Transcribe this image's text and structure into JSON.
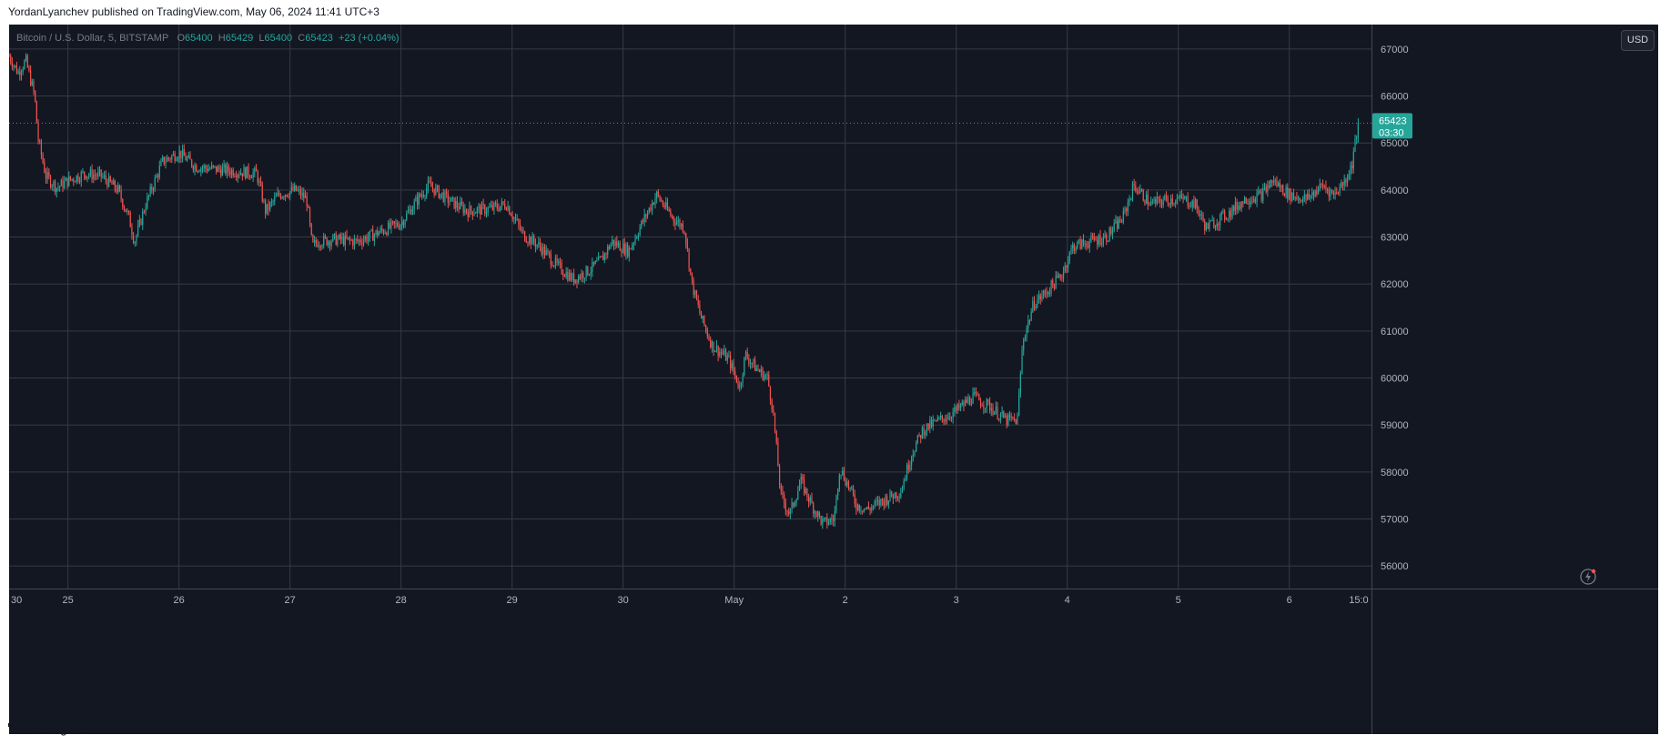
{
  "publish_info": "YordanLyanchev published on TradingView.com, May 06, 2024 11:41 UTC+3",
  "legend": {
    "symbol": "Bitcoin / U.S. Dollar, 5, BITSTAMP",
    "open_label": "O",
    "open": "65400",
    "high_label": "H",
    "high": "65429",
    "low_label": "L",
    "low": "65400",
    "close_label": "C",
    "close": "65423",
    "change": "+23 (+0.04%)"
  },
  "currency_button": "USD",
  "price_label": {
    "price": "65423",
    "countdown": "03:30"
  },
  "footer": {
    "brand": "TradingView",
    "logo_icon": "tradingview-logo-icon"
  },
  "colors": {
    "background": "#131722",
    "grid": "#363a45",
    "up": "#26a69a",
    "down": "#ef5350",
    "axis_text": "#b2b5be"
  },
  "chart_data": {
    "type": "candlestick",
    "title": "Bitcoin / U.S. Dollar, 5, BITSTAMP",
    "x_ticks": [
      "30",
      "25",
      "26",
      "27",
      "28",
      "29",
      "30",
      "May",
      "2",
      "3",
      "4",
      "5",
      "6",
      "15:0"
    ],
    "x_tick_days": [
      -1,
      0,
      1,
      2,
      3,
      4,
      5,
      6,
      7,
      8,
      9,
      10,
      11,
      11.625
    ],
    "x_range_days": [
      -0.53,
      11.74
    ],
    "y_ticks": [
      56000,
      57000,
      58000,
      59000,
      60000,
      61000,
      62000,
      63000,
      64000,
      65000,
      66000,
      67000
    ],
    "ylim": [
      55520,
      67520
    ],
    "grid": true,
    "last_price": 65423,
    "price_path": [
      [
        -0.53,
        66850
      ],
      [
        -0.45,
        66500
      ],
      [
        -0.38,
        66750
      ],
      [
        -0.3,
        66000
      ],
      [
        -0.27,
        65100
      ],
      [
        -0.2,
        64300
      ],
      [
        -0.1,
        64050
      ],
      [
        0,
        64200
      ],
      [
        0.15,
        64350
      ],
      [
        0.3,
        64300
      ],
      [
        0.45,
        64000
      ],
      [
        0.55,
        63400
      ],
      [
        0.6,
        62900
      ],
      [
        0.7,
        63700
      ],
      [
        0.85,
        64600
      ],
      [
        1,
        64800
      ],
      [
        1.15,
        64500
      ],
      [
        1.3,
        64450
      ],
      [
        1.5,
        64400
      ],
      [
        1.7,
        64350
      ],
      [
        1.78,
        63550
      ],
      [
        1.9,
        63900
      ],
      [
        2.05,
        64000
      ],
      [
        2.15,
        63800
      ],
      [
        2.2,
        62800
      ],
      [
        2.25,
        62900
      ],
      [
        2.4,
        62950
      ],
      [
        2.6,
        62900
      ],
      [
        2.8,
        63100
      ],
      [
        3,
        63300
      ],
      [
        3.15,
        63800
      ],
      [
        3.25,
        64100
      ],
      [
        3.45,
        63750
      ],
      [
        3.6,
        63550
      ],
      [
        3.8,
        63600
      ],
      [
        3.95,
        63700
      ],
      [
        4.1,
        63050
      ],
      [
        4.25,
        62800
      ],
      [
        4.4,
        62400
      ],
      [
        4.55,
        62100
      ],
      [
        4.7,
        62300
      ],
      [
        4.8,
        62500
      ],
      [
        4.9,
        62900
      ],
      [
        5.05,
        62700
      ],
      [
        5.15,
        63200
      ],
      [
        5.3,
        63900
      ],
      [
        5.45,
        63400
      ],
      [
        5.55,
        63200
      ],
      [
        5.62,
        62000
      ],
      [
        5.7,
        61300
      ],
      [
        5.8,
        60700
      ],
      [
        5.95,
        60400
      ],
      [
        6.05,
        59800
      ],
      [
        6.1,
        60500
      ],
      [
        6.2,
        60200
      ],
      [
        6.3,
        60000
      ],
      [
        6.35,
        59300
      ],
      [
        6.42,
        57500
      ],
      [
        6.5,
        57100
      ],
      [
        6.6,
        57800
      ],
      [
        6.7,
        57300
      ],
      [
        6.8,
        56900
      ],
      [
        6.9,
        57000
      ],
      [
        6.95,
        58100
      ],
      [
        7.05,
        57600
      ],
      [
        7.1,
        57300
      ],
      [
        7.2,
        57200
      ],
      [
        7.35,
        57400
      ],
      [
        7.5,
        57600
      ],
      [
        7.6,
        58400
      ],
      [
        7.7,
        58900
      ],
      [
        7.85,
        59100
      ],
      [
        8,
        59300
      ],
      [
        8.15,
        59600
      ],
      [
        8.3,
        59400
      ],
      [
        8.45,
        59100
      ],
      [
        8.55,
        59100
      ],
      [
        8.6,
        60800
      ],
      [
        8.7,
        61600
      ],
      [
        8.8,
        61800
      ],
      [
        8.95,
        62200
      ],
      [
        9.05,
        62800
      ],
      [
        9.2,
        62900
      ],
      [
        9.35,
        63000
      ],
      [
        9.5,
        63400
      ],
      [
        9.6,
        64100
      ],
      [
        9.75,
        63700
      ],
      [
        9.9,
        63800
      ],
      [
        10.05,
        63800
      ],
      [
        10.15,
        63700
      ],
      [
        10.25,
        63200
      ],
      [
        10.45,
        63500
      ],
      [
        10.6,
        63800
      ],
      [
        10.75,
        63900
      ],
      [
        10.85,
        64200
      ],
      [
        11,
        63900
      ],
      [
        11.15,
        63800
      ],
      [
        11.3,
        64100
      ],
      [
        11.4,
        63900
      ],
      [
        11.5,
        64200
      ],
      [
        11.56,
        64500
      ],
      [
        11.62,
        65423
      ]
    ]
  }
}
